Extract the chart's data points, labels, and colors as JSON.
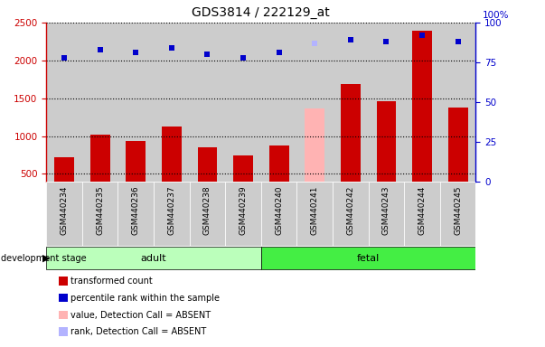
{
  "title": "GDS3814 / 222129_at",
  "categories": [
    "GSM440234",
    "GSM440235",
    "GSM440236",
    "GSM440237",
    "GSM440238",
    "GSM440239",
    "GSM440240",
    "GSM440241",
    "GSM440242",
    "GSM440243",
    "GSM440244",
    "GSM440245"
  ],
  "bar_values": [
    720,
    1020,
    930,
    1130,
    850,
    740,
    880,
    1360,
    1690,
    1460,
    2390,
    1380
  ],
  "bar_colors": [
    "#cc0000",
    "#cc0000",
    "#cc0000",
    "#cc0000",
    "#cc0000",
    "#cc0000",
    "#cc0000",
    "#ffb3b3",
    "#cc0000",
    "#cc0000",
    "#cc0000",
    "#cc0000"
  ],
  "rank_values": [
    78,
    83,
    81,
    84,
    80,
    78,
    81,
    87,
    89,
    88,
    92,
    88
  ],
  "rank_colors": [
    "#0000cc",
    "#0000cc",
    "#0000cc",
    "#0000cc",
    "#0000cc",
    "#0000cc",
    "#0000cc",
    "#b3b3ff",
    "#0000cc",
    "#0000cc",
    "#0000cc",
    "#0000cc"
  ],
  "group_adult_color": "#bbffbb",
  "group_fetal_color": "#44ee44",
  "ylim_left": [
    400,
    2500
  ],
  "ylim_right": [
    0,
    100
  ],
  "yticks_left": [
    500,
    1000,
    1500,
    2000,
    2500
  ],
  "yticks_right": [
    0,
    25,
    50,
    75,
    100
  ],
  "ylabel_left_color": "#cc0000",
  "ylabel_right_color": "#0000cc",
  "legend_items": [
    {
      "label": "transformed count",
      "color": "#cc0000"
    },
    {
      "label": "percentile rank within the sample",
      "color": "#0000cc"
    },
    {
      "label": "value, Detection Call = ABSENT",
      "color": "#ffb3b3"
    },
    {
      "label": "rank, Detection Call = ABSENT",
      "color": "#b3b3ff"
    }
  ],
  "col_bg_color": "#cccccc",
  "bar_width": 0.55
}
